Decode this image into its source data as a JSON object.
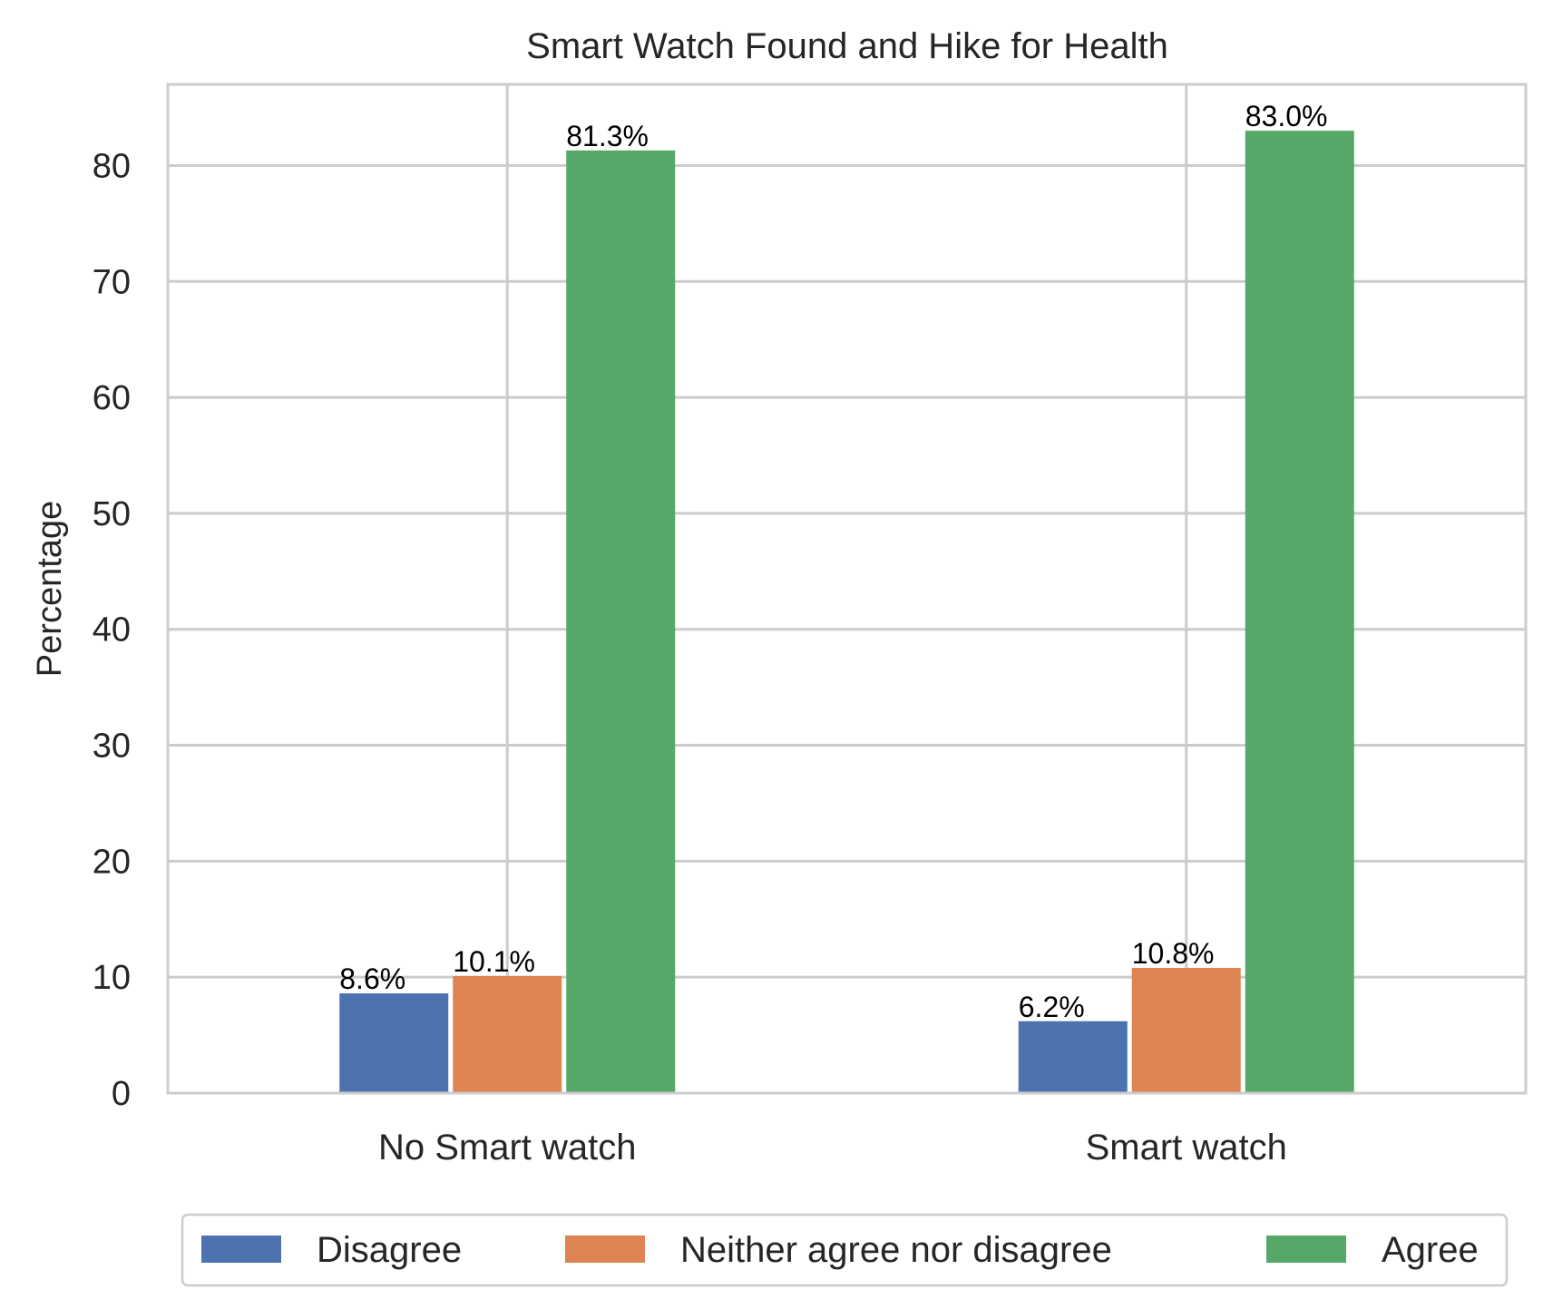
{
  "chart_data": {
    "type": "bar",
    "title": "Smart Watch Found and Hike for Health",
    "xlabel": "",
    "ylabel": "Percentage",
    "categories": [
      "No Smart watch",
      "Smart watch"
    ],
    "series": [
      {
        "name": "Disagree",
        "values": [
          8.6,
          6.2
        ],
        "labels": [
          "8.6%",
          "6.2%"
        ],
        "color": "#4c72b0"
      },
      {
        "name": "Neither agree nor disagree",
        "values": [
          10.1,
          10.8
        ],
        "labels": [
          "10.1%",
          "10.8%"
        ],
        "color": "#dd8452"
      },
      {
        "name": "Agree",
        "values": [
          81.3,
          83.0
        ],
        "labels": [
          "81.3%",
          "83.0%"
        ],
        "color": "#55a868"
      }
    ],
    "yticks": [
      0,
      10,
      20,
      30,
      40,
      50,
      60,
      70,
      80
    ],
    "ylim": [
      0,
      87
    ],
    "grid": true,
    "legend": "bottom-center"
  }
}
